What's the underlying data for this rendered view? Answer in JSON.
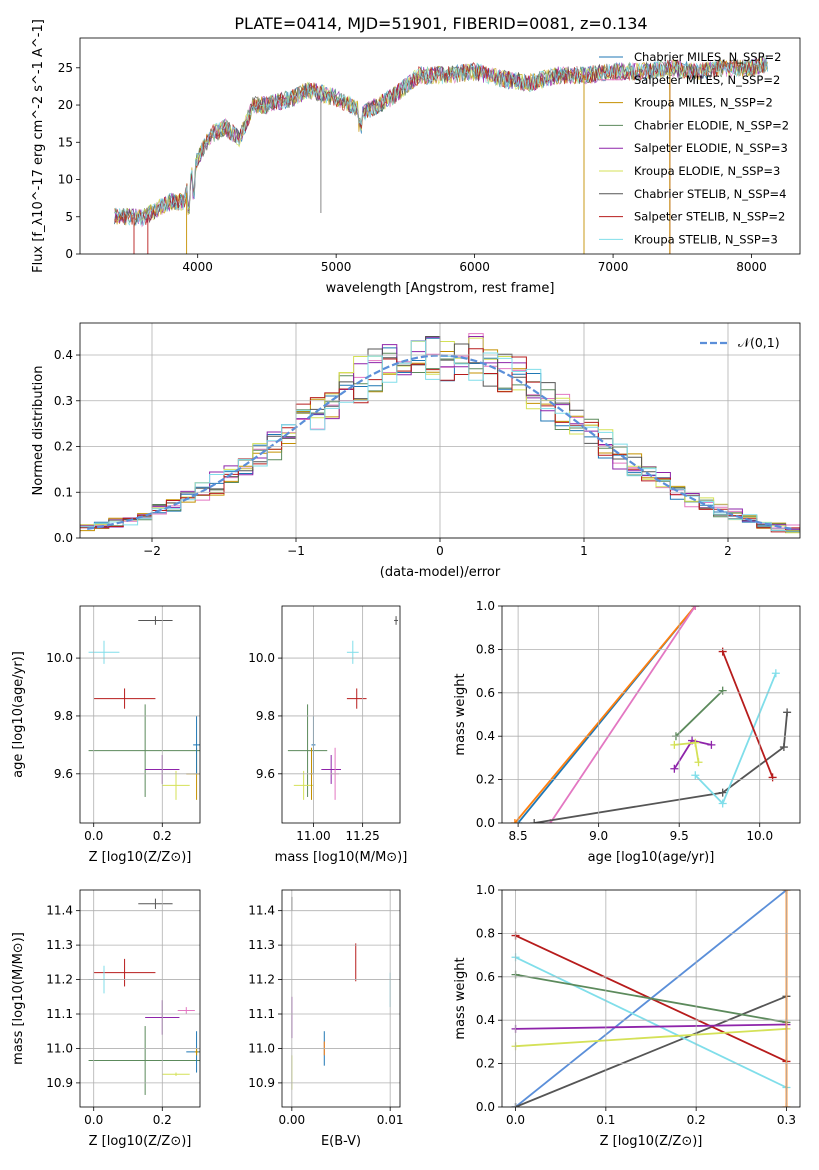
{
  "title": "PLATE=0414, MJD=51901, FIBERID=0081, z=0.134",
  "colors": {
    "chab_miles": "#1f77b4",
    "salp_miles": "#e377c2",
    "krou_miles": "#c49000",
    "chab_elodie": "#5c8a5c",
    "salp_elodie": "#8e24aa",
    "krou_elodie": "#d4e157",
    "chab_stelib": "#555555",
    "salp_stelib": "#b71c1c",
    "krou_stelib": "#80deea",
    "miles_line": "#ff7f0e",
    "gauss": "#5b8fd9"
  },
  "chart_data": [
    {
      "id": "spectrum",
      "type": "line",
      "xlabel": "wavelength [Angstrom, rest frame]",
      "ylabel": "Flux [f_λ10^-17 erg cm^-2 s^-1 A^-1]",
      "xlim": [
        3150,
        8350
      ],
      "ylim": [
        0,
        29
      ],
      "xticks": [
        "4000",
        "5000",
        "6000",
        "7000",
        "8000"
      ],
      "yticks": [
        "0",
        "5",
        "10",
        "15",
        "20",
        "25"
      ],
      "legend_position": "top-right",
      "legend": [
        {
          "label": "Chabrier MILES, N_SSP=2",
          "color": "chab_miles"
        },
        {
          "label": "Salpeter MILES, N_SSP=2",
          "color": "salp_miles"
        },
        {
          "label": "Kroupa MILES, N_SSP=2",
          "color": "krou_miles"
        },
        {
          "label": "Chabrier ELODIE, N_SSP=2",
          "color": "chab_elodie"
        },
        {
          "label": "Salpeter ELODIE, N_SSP=3",
          "color": "salp_elodie"
        },
        {
          "label": "Kroupa ELODIE, N_SSP=3",
          "color": "krou_elodie"
        },
        {
          "label": "Chabrier STELIB, N_SSP=4",
          "color": "chab_stelib"
        },
        {
          "label": "Salpeter STELIB, N_SSP=2",
          "color": "salp_stelib"
        },
        {
          "label": "Kroupa STELIB, N_SSP=3",
          "color": "krou_stelib"
        }
      ],
      "continuum": [
        [
          3400,
          5.2
        ],
        [
          3600,
          4.8
        ],
        [
          3700,
          6
        ],
        [
          3800,
          7
        ],
        [
          3900,
          7
        ],
        [
          4000,
          13
        ],
        [
          4100,
          16
        ],
        [
          4200,
          17
        ],
        [
          4300,
          15.5
        ],
        [
          4400,
          20
        ],
        [
          4500,
          20
        ],
        [
          4700,
          21
        ],
        [
          4800,
          22
        ],
        [
          5000,
          21
        ],
        [
          5200,
          19
        ],
        [
          5400,
          21
        ],
        [
          5600,
          24
        ],
        [
          5800,
          24
        ],
        [
          6000,
          24.5
        ],
        [
          6200,
          23.5
        ],
        [
          6400,
          23
        ],
        [
          6600,
          24
        ],
        [
          6800,
          24
        ],
        [
          7000,
          24.5
        ],
        [
          7200,
          24.5
        ],
        [
          7400,
          25
        ],
        [
          7600,
          24.5
        ],
        [
          7800,
          25
        ],
        [
          8000,
          25
        ],
        [
          8100,
          25.5
        ]
      ]
    },
    {
      "id": "residuals",
      "type": "histogram",
      "xlabel": "(data-model)/error",
      "ylabel": "Normed distribution",
      "xlim": [
        -2.5,
        2.5
      ],
      "ylim": [
        0,
        0.47
      ],
      "xticks": [
        "−2",
        "−1",
        "0",
        "1",
        "2"
      ],
      "yticks": [
        "0.0",
        "0.1",
        "0.2",
        "0.3",
        "0.4"
      ],
      "legend_position": "top-right",
      "gauss_label": "𝒩(0,1)",
      "bin_width": 0.1
    },
    {
      "id": "age_vs_Z",
      "type": "errorbar",
      "xlabel": "Z [log10(Z/Z⊙)]",
      "ylabel": "age [log10(age/yr)]",
      "xlim": [
        -0.04,
        0.31
      ],
      "ylim": [
        9.43,
        10.18
      ],
      "xticks": [
        0.0,
        0.2
      ],
      "yticks": [
        9.6,
        9.8,
        10.0
      ],
      "points": [
        {
          "c": "chab_stelib",
          "x": 0.18,
          "y": 10.13,
          "ex": 0.05,
          "ey": 0.015
        },
        {
          "c": "krou_stelib",
          "x": 0.03,
          "y": 10.02,
          "ex": 0.045,
          "ey": 0.04
        },
        {
          "c": "salp_stelib",
          "x": 0.09,
          "y": 9.86,
          "ex": 0.09,
          "ey": 0.035
        },
        {
          "c": "chab_elodie",
          "x": 0.15,
          "y": 9.68,
          "ex": 0.165,
          "ey": 0.16
        },
        {
          "c": "salp_elodie",
          "x": 0.2,
          "y": 9.615,
          "ex": 0.05,
          "ey": 0.05
        },
        {
          "c": "krou_elodie",
          "x": 0.24,
          "y": 9.56,
          "ex": 0.04,
          "ey": 0.05
        },
        {
          "c": "krou_miles",
          "x": 0.3,
          "y": 9.6,
          "ex": 0.03,
          "ey": 0.09
        },
        {
          "c": "chab_miles",
          "x": 0.3,
          "y": 9.7,
          "ex": 0.01,
          "ey": 0.1
        }
      ]
    },
    {
      "id": "age_vs_mass",
      "type": "errorbar",
      "xlabel": "mass [log10(M/M⊙)]",
      "ylabel": "",
      "xlim": [
        10.84,
        11.44
      ],
      "ylim": [
        9.43,
        10.18
      ],
      "xticks": [
        11.0,
        11.25
      ],
      "yticks": [
        9.6,
        9.8,
        10.0
      ],
      "points": [
        {
          "c": "chab_stelib",
          "x": 11.42,
          "y": 10.13,
          "ex": 0.01,
          "ey": 0.015
        },
        {
          "c": "krou_stelib",
          "x": 11.2,
          "y": 10.02,
          "ex": 0.03,
          "ey": 0.04
        },
        {
          "c": "salp_stelib",
          "x": 11.22,
          "y": 9.86,
          "ex": 0.05,
          "ey": 0.035
        },
        {
          "c": "chab_elodie",
          "x": 10.97,
          "y": 9.68,
          "ex": 0.1,
          "ey": 0.16
        },
        {
          "c": "salp_elodie",
          "x": 11.09,
          "y": 9.615,
          "ex": 0.05,
          "ey": 0.05
        },
        {
          "c": "krou_elodie",
          "x": 10.95,
          "y": 9.56,
          "ex": 0.05,
          "ey": 0.05
        },
        {
          "c": "krou_miles",
          "x": 10.99,
          "y": 9.6,
          "ex": 0.01,
          "ey": 0.09
        },
        {
          "c": "salp_miles",
          "x": 11.11,
          "y": 9.6,
          "ex": 0.02,
          "ey": 0.09
        },
        {
          "c": "chab_miles",
          "x": 11.0,
          "y": 9.7,
          "ex": 0.01,
          "ey": 0.1
        }
      ]
    },
    {
      "id": "weight_vs_age",
      "type": "line",
      "xlabel": "age [log10(age/yr)]",
      "ylabel": "mass weight",
      "xlim": [
        8.4,
        10.25
      ],
      "ylim": [
        0,
        1
      ],
      "xticks": [
        8.5,
        9.0,
        9.5,
        10.0
      ],
      "yticks": [
        0.0,
        0.2,
        0.4,
        0.6,
        0.8,
        1.0
      ],
      "series": [
        {
          "c": "chab_miles",
          "x": [
            8.5,
            9.6
          ],
          "y": [
            0.0,
            1.0
          ]
        },
        {
          "c": "miles_line",
          "x": [
            8.48,
            9.6
          ],
          "y": [
            0.0,
            1.0
          ]
        },
        {
          "c": "salp_miles",
          "x": [
            8.7,
            9.6
          ],
          "y": [
            0.0,
            1.0
          ]
        },
        {
          "c": "chab_stelib",
          "x": [
            8.6,
            9.77,
            10.15,
            10.17
          ],
          "y": [
            0.0,
            0.14,
            0.35,
            0.51
          ]
        },
        {
          "c": "krou_stelib",
          "x": [
            9.6,
            9.77,
            10.1
          ],
          "y": [
            0.22,
            0.09,
            0.69
          ]
        },
        {
          "c": "salp_stelib",
          "x": [
            9.77,
            10.08
          ],
          "y": [
            0.79,
            0.21
          ]
        },
        {
          "c": "chab_elodie",
          "x": [
            9.48,
            9.77
          ],
          "y": [
            0.4,
            0.61
          ]
        },
        {
          "c": "salp_elodie",
          "x": [
            9.47,
            9.58,
            9.7
          ],
          "y": [
            0.25,
            0.38,
            0.36
          ]
        },
        {
          "c": "krou_elodie",
          "x": [
            9.47,
            9.6,
            9.62
          ],
          "y": [
            0.36,
            0.37,
            0.28
          ]
        }
      ]
    },
    {
      "id": "mass_vs_Z",
      "type": "errorbar",
      "xlabel": "Z [log10(Z/Z⊙)]",
      "ylabel": "mass [log10(M/M⊙)]",
      "xlim": [
        -0.04,
        0.31
      ],
      "ylim": [
        10.83,
        11.46
      ],
      "xticks": [
        0.0,
        0.2
      ],
      "yticks": [
        10.9,
        11.0,
        11.1,
        11.2,
        11.3,
        11.4
      ],
      "points": [
        {
          "c": "chab_stelib",
          "x": 0.18,
          "y": 11.42,
          "ex": 0.05,
          "ey": 0.015
        },
        {
          "c": "salp_stelib",
          "x": 0.09,
          "y": 11.22,
          "ex": 0.09,
          "ey": 0.04
        },
        {
          "c": "krou_stelib",
          "x": 0.03,
          "y": 11.2,
          "ex": 0.045,
          "ey": 0.04
        },
        {
          "c": "salp_elodie",
          "x": 0.2,
          "y": 11.09,
          "ex": 0.05,
          "ey": 0.05
        },
        {
          "c": "salp_miles",
          "x": 0.27,
          "y": 11.11,
          "ex": 0.025,
          "ey": 0.01
        },
        {
          "c": "chab_elodie",
          "x": 0.15,
          "y": 10.965,
          "ex": 0.165,
          "ey": 0.1
        },
        {
          "c": "chab_miles",
          "x": 0.3,
          "y": 10.99,
          "ex": 0.03,
          "ey": 0.06
        },
        {
          "c": "krou_miles",
          "x": 0.3,
          "y": 10.99,
          "ex": 0.005,
          "ey": 0.01
        },
        {
          "c": "krou_elodie",
          "x": 0.24,
          "y": 10.925,
          "ex": 0.04,
          "ey": 0.005
        }
      ]
    },
    {
      "id": "mass_vs_ebv",
      "type": "errorbar",
      "xlabel": "E(B-V)",
      "ylabel": "",
      "xlim": [
        -0.001,
        0.011
      ],
      "ylim": [
        10.83,
        11.46
      ],
      "xticks": [
        0.0,
        0.01
      ],
      "yticks": [
        10.9,
        11.0,
        11.1,
        11.2,
        11.3,
        11.4
      ],
      "points": [
        {
          "c": "chab_stelib",
          "x": 0.0,
          "y": 11.42,
          "ex": 0.0,
          "ey": 0.02
        },
        {
          "c": "salp_stelib",
          "x": 0.0065,
          "y": 11.25,
          "ex": 0.0,
          "ey": 0.055
        },
        {
          "c": "krou_stelib",
          "x": 0.01,
          "y": 11.17,
          "ex": 0.0,
          "ey": 0.05
        },
        {
          "c": "salp_elodie",
          "x": 0.0,
          "y": 11.09,
          "ex": 0.0,
          "ey": 0.06
        },
        {
          "c": "chab_miles",
          "x": 0.0033,
          "y": 11.0,
          "ex": 0.0,
          "ey": 0.05
        },
        {
          "c": "miles_line",
          "x": 0.0033,
          "y": 11.0,
          "ex": 0.0,
          "ey": 0.02
        },
        {
          "c": "krou_elodie",
          "x": 0.0,
          "y": 10.93,
          "ex": 0.0,
          "ey": 0.05
        }
      ]
    },
    {
      "id": "weight_vs_Z",
      "type": "line",
      "xlabel": "Z [log10(Z/Z⊙)]",
      "ylabel": "mass weight",
      "xlim": [
        -0.015,
        0.315
      ],
      "ylim": [
        0,
        1
      ],
      "xticks": [
        0.0,
        0.1,
        0.2,
        0.3
      ],
      "yticks": [
        0.0,
        0.2,
        0.4,
        0.6,
        0.8,
        1.0
      ],
      "series": [
        {
          "c": "gauss",
          "x": [
            0.0,
            0.3
          ],
          "y": [
            0.0,
            1.0
          ]
        },
        {
          "c": "chab_stelib",
          "x": [
            0.0,
            0.3
          ],
          "y": [
            0.0,
            0.51
          ]
        },
        {
          "c": "salp_stelib",
          "x": [
            0.0,
            0.3
          ],
          "y": [
            0.79,
            0.21
          ]
        },
        {
          "c": "krou_stelib",
          "x": [
            0.0,
            0.3
          ],
          "y": [
            0.69,
            0.09
          ]
        },
        {
          "c": "chab_elodie",
          "x": [
            0.0,
            0.3
          ],
          "y": [
            0.61,
            0.39
          ]
        },
        {
          "c": "salp_elodie",
          "x": [
            0.0,
            0.3
          ],
          "y": [
            0.36,
            0.38
          ]
        },
        {
          "c": "krou_elodie",
          "x": [
            0.0,
            0.3
          ],
          "y": [
            0.28,
            0.36
          ]
        },
        {
          "c": "miles_line",
          "x": [
            0.3,
            0.3
          ],
          "y": [
            0.0,
            1.0
          ]
        }
      ]
    }
  ]
}
